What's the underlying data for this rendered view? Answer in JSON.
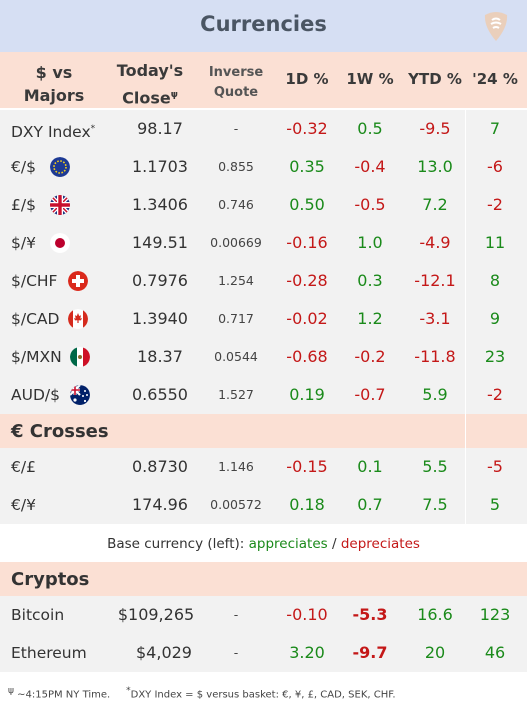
{
  "title": "Currencies",
  "columns": {
    "pair_line1": "$ vs",
    "pair_line2": "Majors",
    "close_line1": "Today's",
    "close_line2": "Close",
    "close_sup": "ψ",
    "inverse_line1": "Inverse",
    "inverse_line2": "Quote",
    "d1": "1D %",
    "w1": "1W %",
    "ytd": "YTD %",
    "y24": "'24 %"
  },
  "majors": [
    {
      "name": "DXY Index",
      "sup": "*",
      "close": "98.17",
      "inverse": "-",
      "d1": "-0.32",
      "w1": "0.5",
      "ytd": "-9.5",
      "y24": "7",
      "flag": "none"
    },
    {
      "name": "€/$",
      "close": "1.1703",
      "inverse": "0.855",
      "d1": "0.35",
      "w1": "-0.4",
      "ytd": "13.0",
      "y24": "-6",
      "flag": "eu-flag-icon"
    },
    {
      "name": "£/$",
      "close": "1.3406",
      "inverse": "0.746",
      "d1": "0.50",
      "w1": "-0.5",
      "ytd": "7.2",
      "y24": "-2",
      "flag": "uk-flag-icon"
    },
    {
      "name": "$/¥",
      "close": "149.51",
      "inverse": "0.00669",
      "d1": "-0.16",
      "w1": "1.0",
      "ytd": "-4.9",
      "y24": "11",
      "flag": "japan-flag-icon"
    },
    {
      "name": "$/CHF",
      "close": "0.7976",
      "inverse": "1.254",
      "d1": "-0.28",
      "w1": "0.3",
      "ytd": "-12.1",
      "y24": "8",
      "flag": "swiss-flag-icon"
    },
    {
      "name": "$/CAD",
      "close": "1.3940",
      "inverse": "0.717",
      "d1": "-0.02",
      "w1": "1.2",
      "ytd": "-3.1",
      "y24": "9",
      "flag": "canada-flag-icon"
    },
    {
      "name": "$/MXN",
      "close": "18.37",
      "inverse": "0.0544",
      "d1": "-0.68",
      "w1": "-0.2",
      "ytd": "-11.8",
      "y24": "23",
      "flag": "mexico-flag-icon"
    },
    {
      "name": "AUD/$",
      "close": "0.6550",
      "inverse": "1.527",
      "d1": "0.19",
      "w1": "-0.7",
      "ytd": "5.9",
      "y24": "-2",
      "flag": "australia-flag-icon"
    }
  ],
  "crosses_title": "€ Crosses",
  "crosses": [
    {
      "name": "€/£",
      "close": "0.8730",
      "inverse": "1.146",
      "d1": "-0.15",
      "w1": "0.1",
      "ytd": "5.5",
      "y24": "-5"
    },
    {
      "name": "€/¥",
      "close": "174.96",
      "inverse": "0.00572",
      "d1": "0.18",
      "w1": "0.7",
      "ytd": "7.5",
      "y24": "5"
    }
  ],
  "legend": {
    "prefix": "Base currency (left):",
    "appreciates": "appreciates",
    "sep": "/",
    "depreciates": "depreciates"
  },
  "crypto_title": "Cryptos",
  "cryptos": [
    {
      "name": "Bitcoin",
      "close": "$109,265",
      "inverse": "-",
      "d1": "-0.10",
      "w1": "-5.3",
      "ytd": "16.6",
      "y24": "123"
    },
    {
      "name": "Ethereum",
      "close": "$4,029",
      "inverse": "-",
      "d1": "3.20",
      "w1": "-9.7",
      "ytd": "20",
      "y24": "46"
    }
  ],
  "footnote": {
    "sup1": "ψ",
    "text1": "~4:15PM NY Time.",
    "sup2": "*",
    "text2": "DXY Index = $ versus basket: €, ¥, £, CAD, SEK, CHF."
  },
  "colors": {
    "title_bg": "#d6dff3",
    "header_bg": "#fbe0d4",
    "row_bg": "#f2f2f2",
    "positive": "#1a8a1a",
    "negative": "#c41818"
  },
  "icons": {
    "logo": "guitar-pick-logo-icon"
  }
}
